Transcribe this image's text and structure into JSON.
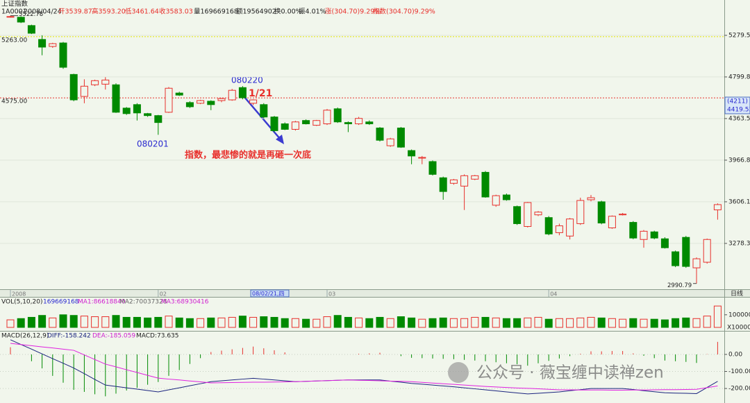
{
  "page_title": "上证指数",
  "header": [
    "1A0001",
    "2008/04/24",
    "开3539.87",
    "高3593.20",
    "低3461.64",
    "收3583.03",
    "量169669168",
    "额19564902",
    "换0.00%",
    "振4.01%",
    "涨(304.70)9.29%",
    "指数(304.70)9.29%"
  ],
  "chart_data": [
    {
      "type": "candlestick",
      "categories": [
        "2008",
        null,
        null,
        null,
        null,
        null,
        null,
        null,
        null,
        null,
        null,
        null,
        null,
        null,
        "02",
        null,
        null,
        null,
        null,
        null,
        null,
        null,
        null,
        null,
        null,
        null,
        null,
        null,
        null,
        null,
        "03",
        null,
        null,
        null,
        null,
        null,
        null,
        null,
        null,
        null,
        null,
        null,
        null,
        null,
        null,
        null,
        null,
        null,
        null,
        null,
        null,
        "04",
        null,
        null,
        null,
        null,
        null,
        null,
        null,
        null,
        null,
        null,
        null,
        null,
        null,
        null,
        null,
        null
      ],
      "open": [
        5510,
        5503,
        5399,
        5230,
        5147,
        5188,
        4827,
        4590,
        4714,
        4721,
        4714,
        4469,
        4505,
        4413,
        4393,
        4427,
        4626,
        4526,
        4519,
        4540,
        4547,
        4554,
        4684,
        4519,
        4505,
        4379,
        4311,
        4257,
        4344,
        4297,
        4311,
        4462,
        4324,
        4311,
        4330,
        4270,
        4100,
        4270,
        4055,
        3985,
        3954,
        3810,
        3762,
        3738,
        3798,
        3858,
        3578,
        3663,
        3567,
        3408,
        3500,
        3478,
        3360,
        3334,
        3430,
        3623,
        3606,
        3397,
        3500,
        3440,
        3308,
        3366,
        3313,
        3216,
        3324,
        3100,
        3140,
        3539.87
      ],
      "high": [
        5522.78,
        5515,
        5410,
        5280,
        5190,
        5200,
        4835,
        4774,
        4770,
        4797,
        4730,
        4480,
        4520,
        4420,
        4400,
        4690,
        4640,
        4540,
        4555,
        4550,
        4575,
        4670,
        4700,
        4560,
        4520,
        4390,
        4325,
        4340,
        4355,
        4350,
        4460,
        4475,
        4335,
        4380,
        4345,
        4280,
        4175,
        4280,
        4065,
        4005,
        3965,
        3820,
        3800,
        3840,
        3835,
        3870,
        3665,
        3675,
        3575,
        3605,
        3530,
        3490,
        3430,
        3475,
        3640,
        3663,
        3615,
        3495,
        3515,
        3450,
        3380,
        3375,
        3325,
        3225,
        3335,
        3175,
        3315,
        3593.2
      ],
      "low": [
        5500,
        5430,
        5295,
        5044,
        5130,
        4890,
        4540,
        4519,
        4700,
        4663,
        4420,
        4400,
        4344,
        4380,
        4204,
        4420,
        4595,
        4470,
        4510,
        4448,
        4530,
        4545,
        4560,
        4500,
        4365,
        4230,
        4250,
        4245,
        4305,
        4290,
        4300,
        4320,
        4230,
        4300,
        4300,
        4140,
        4090,
        4080,
        3930,
        3930,
        3830,
        3623,
        3750,
        3539,
        3790,
        3640,
        3565,
        3615,
        3420,
        3400,
        3490,
        3340,
        3340,
        3308,
        3420,
        3610,
        3425,
        3390,
        3495,
        3310,
        3246,
        3310,
        3240,
        3105,
        3100,
        2990.79,
        3130,
        3461.64
      ],
      "close": [
        5512,
        5442,
        5305,
        5139,
        5180,
        4907,
        4554,
        4699,
        4759,
        4766,
        4427,
        4413,
        4420,
        4393,
        4324,
        4677,
        4604,
        4483,
        4547,
        4505,
        4568,
        4655,
        4576,
        4554,
        4379,
        4244,
        4257,
        4330,
        4311,
        4344,
        4448,
        4330,
        4311,
        4365,
        4311,
        4152,
        4165,
        4087,
        4005,
        3992,
        3840,
        3692,
        3792,
        3828,
        3828,
        3646,
        3657,
        3623,
        3430,
        3600,
        3522,
        3350,
        3413,
        3467,
        3617,
        3640,
        3435,
        3489,
        3506,
        3319,
        3371,
        3319,
        3246,
        3115,
        3110,
        3165,
        3308,
        3583.03
      ],
      "up_color": "#e8302c",
      "down_color": "#008a00",
      "ylim": [
        2961,
        5572
      ],
      "log_scale": true,
      "yticks": [
        5279.5,
        4799.8,
        4363.5,
        3966.8,
        3606.1,
        3278.3
      ],
      "grid": true,
      "reference_lines": [
        {
          "value": 5263,
          "label": "5263.00",
          "color": "#e6e600"
        },
        {
          "value": 4575,
          "label": "4575.00",
          "color": "#e8302c"
        }
      ],
      "annotations": [
        "080220",
        "080201",
        "1/21",
        "指数，最悲惨的就是再砸一次底"
      ],
      "cursor_label": "(4211)",
      "cursor_price": "4419.53",
      "cursor_date": "08/02/21,四",
      "period": "日线"
    },
    {
      "type": "bar",
      "title": "VOL(5,10,20)",
      "legend": [
        "169669168",
        "MA1:86618840",
        "MA2:70037328",
        "MA3:68930416"
      ],
      "values": [
        60000,
        70000,
        80000,
        95000,
        75000,
        100000,
        95000,
        90000,
        85000,
        85000,
        95000,
        80000,
        80000,
        75000,
        80000,
        90000,
        75000,
        70000,
        70000,
        75000,
        75000,
        80000,
        90000,
        80000,
        85000,
        80000,
        70000,
        70000,
        65000,
        65000,
        85000,
        95000,
        80000,
        75000,
        70000,
        80000,
        70000,
        85000,
        75000,
        65000,
        70000,
        75000,
        70000,
        70000,
        80000,
        80000,
        75000,
        70000,
        70000,
        75000,
        80000,
        65000,
        70000,
        70000,
        75000,
        80000,
        75000,
        70000,
        65000,
        70000,
        65000,
        65000,
        60000,
        70000,
        75000,
        70000,
        90000,
        169669
      ],
      "ylim": [
        0,
        220000
      ],
      "yticks": [
        100000
      ],
      "unit": "X10000"
    },
    {
      "type": "macd",
      "title": "MACD(26,12,9)",
      "legend": [
        "DIFF:-158.242",
        "DEA:-185.059",
        "MACD:73.635"
      ],
      "series": [
        {
          "color": "#1a237e",
          "values": [
            86,
            58,
            31,
            3,
            -25,
            -52,
            -80,
            -113,
            -147,
            -180,
            -188,
            -196,
            -204,
            -212,
            -220,
            -208,
            -196,
            -184,
            -172,
            -160,
            -155,
            -150,
            -145,
            -140,
            -145,
            -150,
            -155,
            -160,
            -158,
            -156,
            -154,
            -152,
            -150,
            -150,
            -150,
            -150,
            -157,
            -163,
            -170,
            -175,
            -180,
            -185,
            -190,
            -196,
            -202,
            -208,
            -214,
            -220,
            -226,
            -232,
            -228,
            -224,
            -220,
            -213,
            -207,
            -200,
            -200,
            -200,
            -200,
            -206,
            -213,
            -219,
            -225,
            -227,
            -228,
            -230,
            -194,
            -158.242
          ]
        },
        {
          "color": "#e020e0",
          "values": [
            65,
            58,
            51,
            44,
            38,
            31,
            24,
            -3,
            -30,
            -57,
            -73,
            -90,
            -106,
            -123,
            -139,
            -145,
            -150,
            -156,
            -161,
            -167,
            -166,
            -165,
            -164,
            -163,
            -163,
            -162,
            -161,
            -160,
            -158,
            -156,
            -154,
            -152,
            -150,
            -152,
            -153,
            -155,
            -157,
            -158,
            -160,
            -164,
            -168,
            -172,
            -176,
            -180,
            -184,
            -188,
            -191,
            -194,
            -197,
            -199,
            -202,
            -205,
            -208,
            -208,
            -209,
            -209,
            -209,
            -210,
            -210,
            -209,
            -209,
            -208,
            -207,
            -207,
            -206,
            -205,
            -195,
            -185.059
          ]
        },
        {
          "values": [
            42,
            0,
            -40,
            -82,
            -126,
            -166,
            -208,
            -220,
            -234,
            -246,
            -230,
            -212,
            -196,
            -178,
            -162,
            -126,
            -92,
            -56,
            -22,
            14,
            22,
            30,
            38,
            46,
            36,
            24,
            12,
            0,
            0,
            0,
            0,
            0,
            0,
            4,
            6,
            10,
            0,
            -10,
            -20,
            -22,
            -24,
            -26,
            -28,
            -32,
            -36,
            -40,
            -46,
            -52,
            -58,
            -66,
            -52,
            -38,
            -24,
            -10,
            4,
            18,
            18,
            20,
            20,
            6,
            -8,
            -22,
            -36,
            -40,
            -44,
            -50,
            2,
            73.635
          ]
        }
      ],
      "ylim": [
        -273,
        126
      ],
      "yticks": [
        {
          "value": 0,
          "label": "0.00"
        },
        {
          "value": -100,
          "label": "-100.00"
        },
        {
          "value": -200,
          "label": "-200.00"
        }
      ]
    }
  ],
  "watermark": "公众号 · 薇宝缠中读禅zen"
}
